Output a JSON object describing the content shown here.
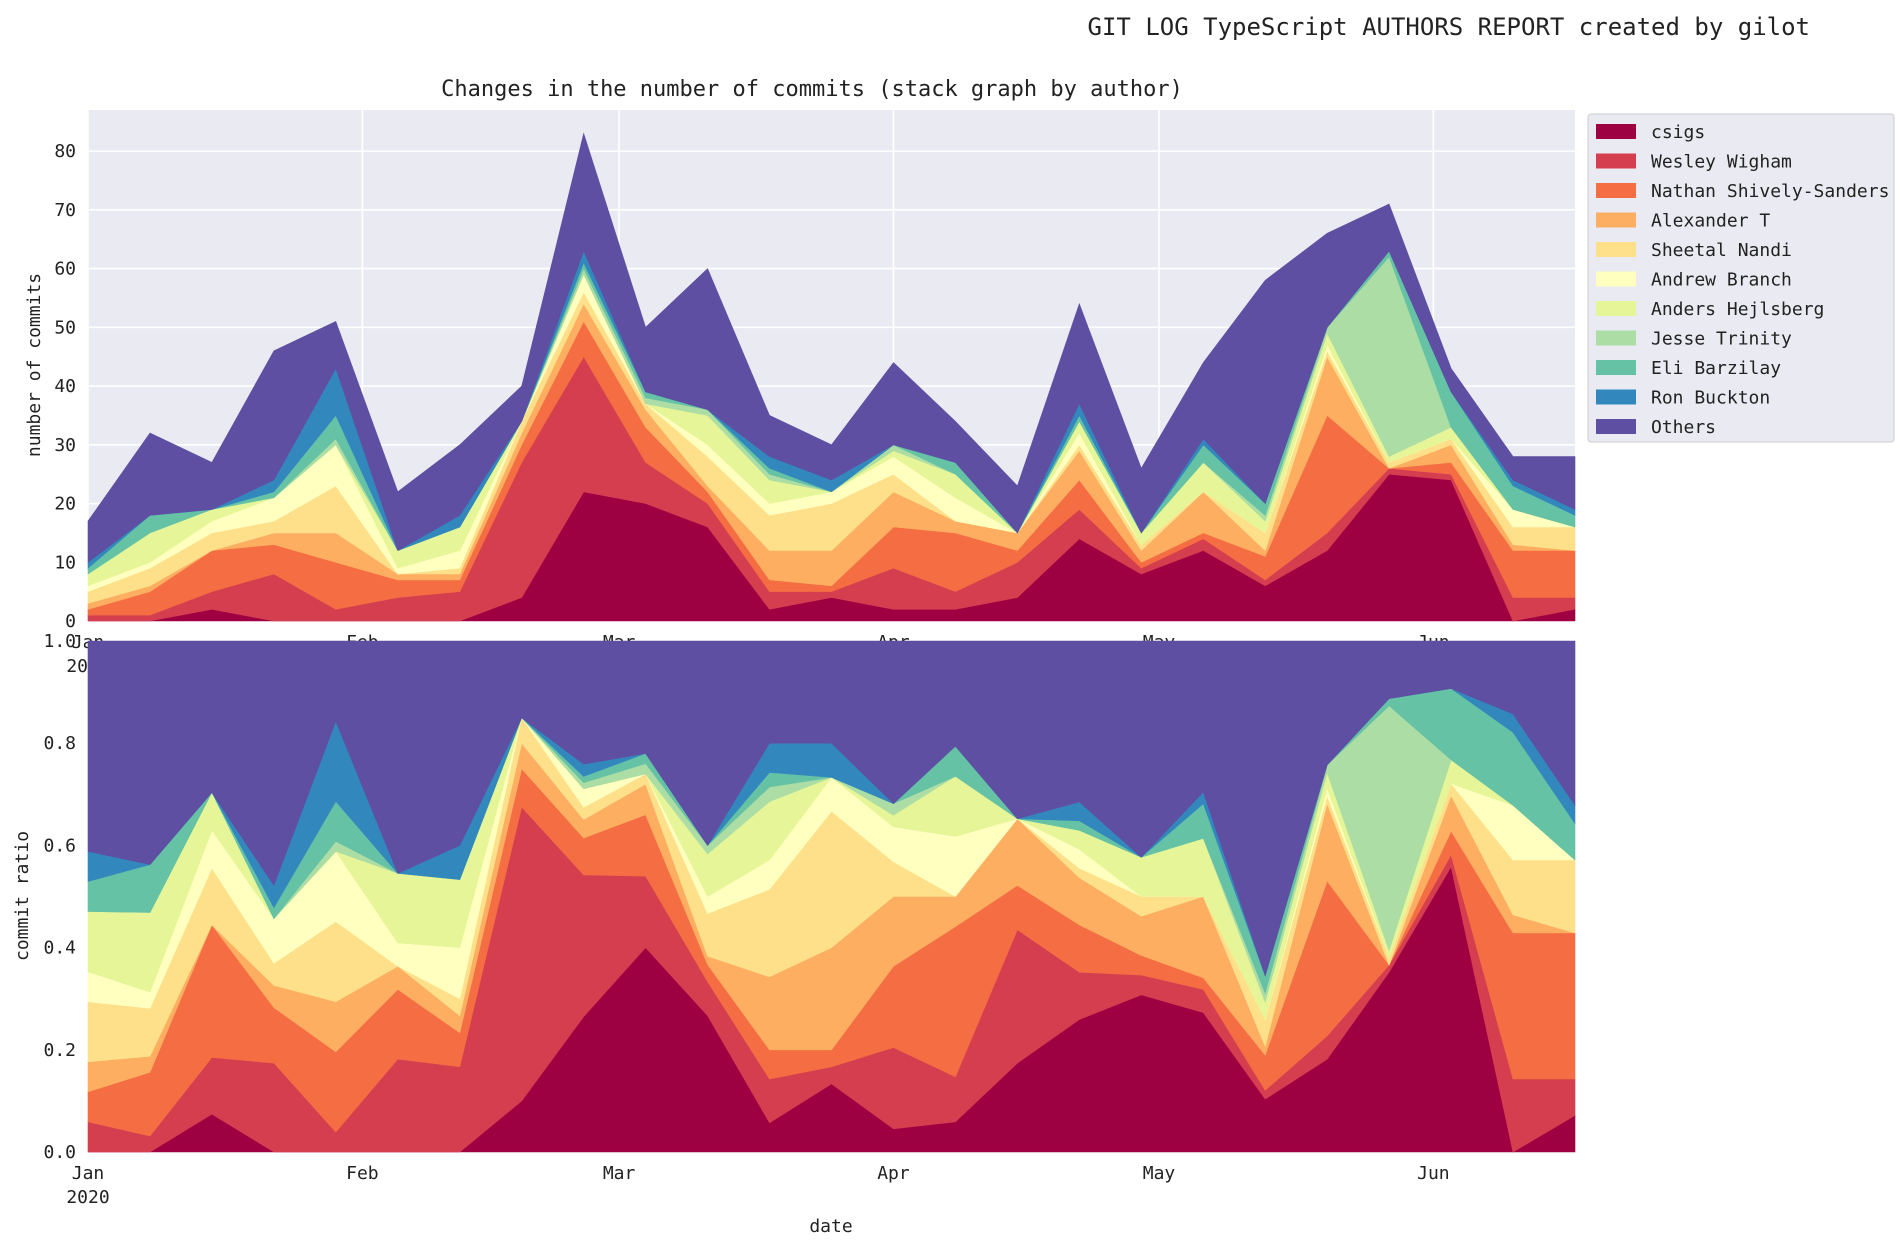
{
  "suptitle": "GIT LOG TypeScript AUTHORS REPORT created by gilot",
  "chart_data": [
    {
      "type": "area",
      "title": "Changes in the number of commits (stack graph by author)",
      "xlabel": "",
      "ylabel": "number of commits",
      "ylim": [
        0,
        87
      ],
      "yticks": [
        0,
        10,
        20,
        30,
        40,
        50,
        60,
        70,
        80
      ],
      "grid": true,
      "legend_position": "right-outside",
      "x": [
        "2020-01-01",
        "2020-01-08",
        "2020-01-15",
        "2020-01-22",
        "2020-01-29",
        "2020-02-05",
        "2020-02-12",
        "2020-02-19",
        "2020-02-26",
        "2020-03-04",
        "2020-03-11",
        "2020-03-18",
        "2020-03-25",
        "2020-04-01",
        "2020-04-08",
        "2020-04-15",
        "2020-04-22",
        "2020-04-29",
        "2020-05-06",
        "2020-05-13",
        "2020-05-20",
        "2020-05-27",
        "2020-06-03",
        "2020-06-10",
        "2020-06-17"
      ],
      "xlim": [
        "2020-01-01",
        "2020-06-17"
      ],
      "xticks": [
        {
          "date": "2020-01-01",
          "label": "Jan",
          "sublabel": "2020"
        },
        {
          "date": "2020-02-01",
          "label": "Feb"
        },
        {
          "date": "2020-03-01",
          "label": "Mar"
        },
        {
          "date": "2020-04-01",
          "label": "Apr"
        },
        {
          "date": "2020-05-01",
          "label": "May"
        },
        {
          "date": "2020-06-01",
          "label": "Jun"
        }
      ],
      "series": [
        {
          "name": "csigs",
          "color": "#9e0142",
          "values": [
            0,
            0,
            2,
            0,
            0,
            0,
            0,
            4,
            22,
            20,
            16,
            2,
            4,
            2,
            2,
            4,
            14,
            8,
            12,
            6,
            12,
            25,
            24,
            0,
            2
          ]
        },
        {
          "name": "Wesley Wigham",
          "color": "#d53e4f",
          "values": [
            1,
            1,
            3,
            8,
            2,
            4,
            5,
            23,
            23,
            7,
            4,
            3,
            1,
            7,
            3,
            6,
            5,
            1,
            2,
            1,
            3,
            1,
            1,
            4,
            2
          ]
        },
        {
          "name": "Nathan Shively-Sanders",
          "color": "#f46d43",
          "values": [
            1,
            4,
            7,
            5,
            8,
            3,
            2,
            3,
            6,
            6,
            2,
            2,
            1,
            7,
            10,
            2,
            5,
            1,
            1,
            4,
            20,
            0,
            2,
            8,
            8
          ]
        },
        {
          "name": "Alexander T",
          "color": "#fdae61",
          "values": [
            1,
            1,
            0,
            2,
            5,
            1,
            1,
            2,
            3,
            3,
            1,
            5,
            6,
            6,
            2,
            3,
            5,
            2,
            7,
            1,
            10,
            0,
            3,
            1,
            0
          ]
        },
        {
          "name": "Sheetal Nandi",
          "color": "#fee08b",
          "values": [
            2,
            3,
            3,
            2,
            8,
            0,
            1,
            2,
            2,
            1,
            5,
            6,
            8,
            3,
            0,
            0,
            1,
            1,
            0,
            3,
            1,
            1,
            1,
            3,
            4
          ]
        },
        {
          "name": "Andrew Branch",
          "color": "#ffffbf",
          "values": [
            1,
            1,
            2,
            4,
            7,
            1,
            3,
            0,
            3,
            0,
            2,
            2,
            2,
            3,
            4,
            0,
            2,
            0,
            0,
            0,
            1,
            0,
            0,
            3,
            0
          ]
        },
        {
          "name": "Anders Hejlsberg",
          "color": "#e6f598",
          "values": [
            2,
            5,
            2,
            0,
            0,
            3,
            4,
            0,
            0,
            0,
            5,
            4,
            0,
            1,
            4,
            0,
            2,
            2,
            5,
            2,
            2,
            1,
            2,
            0,
            0
          ]
        },
        {
          "name": "Jesse Trinity",
          "color": "#abdda4",
          "values": [
            0,
            0,
            0,
            0,
            1,
            0,
            0,
            0,
            1,
            1,
            1,
            1,
            0,
            1,
            0,
            0,
            0,
            0,
            0,
            1,
            1,
            34,
            0,
            0,
            0
          ]
        },
        {
          "name": "Eli Barzilay",
          "color": "#66c2a5",
          "values": [
            1,
            3,
            0,
            1,
            4,
            0,
            0,
            0,
            1,
            1,
            0,
            1,
            0,
            0,
            2,
            0,
            1,
            0,
            3,
            2,
            0,
            1,
            6,
            4,
            2
          ]
        },
        {
          "name": "Ron Buckton",
          "color": "#3288bd",
          "values": [
            1,
            0,
            0,
            2,
            8,
            0,
            2,
            0,
            2,
            0,
            0,
            2,
            2,
            0,
            0,
            0,
            2,
            0,
            1,
            0,
            0,
            0,
            0,
            1,
            1
          ]
        },
        {
          "name": "Others",
          "color": "#5e4fa2",
          "values": [
            7,
            14,
            8,
            22,
            8,
            10,
            12,
            6,
            20,
            11,
            24,
            7,
            6,
            14,
            7,
            8,
            17,
            11,
            13,
            38,
            16,
            8,
            4,
            4,
            9
          ]
        }
      ]
    },
    {
      "type": "area",
      "title": "",
      "xlabel": "date",
      "ylabel": "commit ratio",
      "ylim": [
        0,
        1.0
      ],
      "yticks": [
        0.0,
        0.2,
        0.4,
        0.6,
        0.8,
        1.0
      ],
      "ytick_labels": [
        "0.0",
        "0.2",
        "0.4",
        "0.6",
        "0.8",
        "1.0"
      ],
      "grid": false,
      "stacking": "normalized",
      "x_source": "same as first chart",
      "series_source": "same as first chart, each week divided by its total"
    }
  ]
}
